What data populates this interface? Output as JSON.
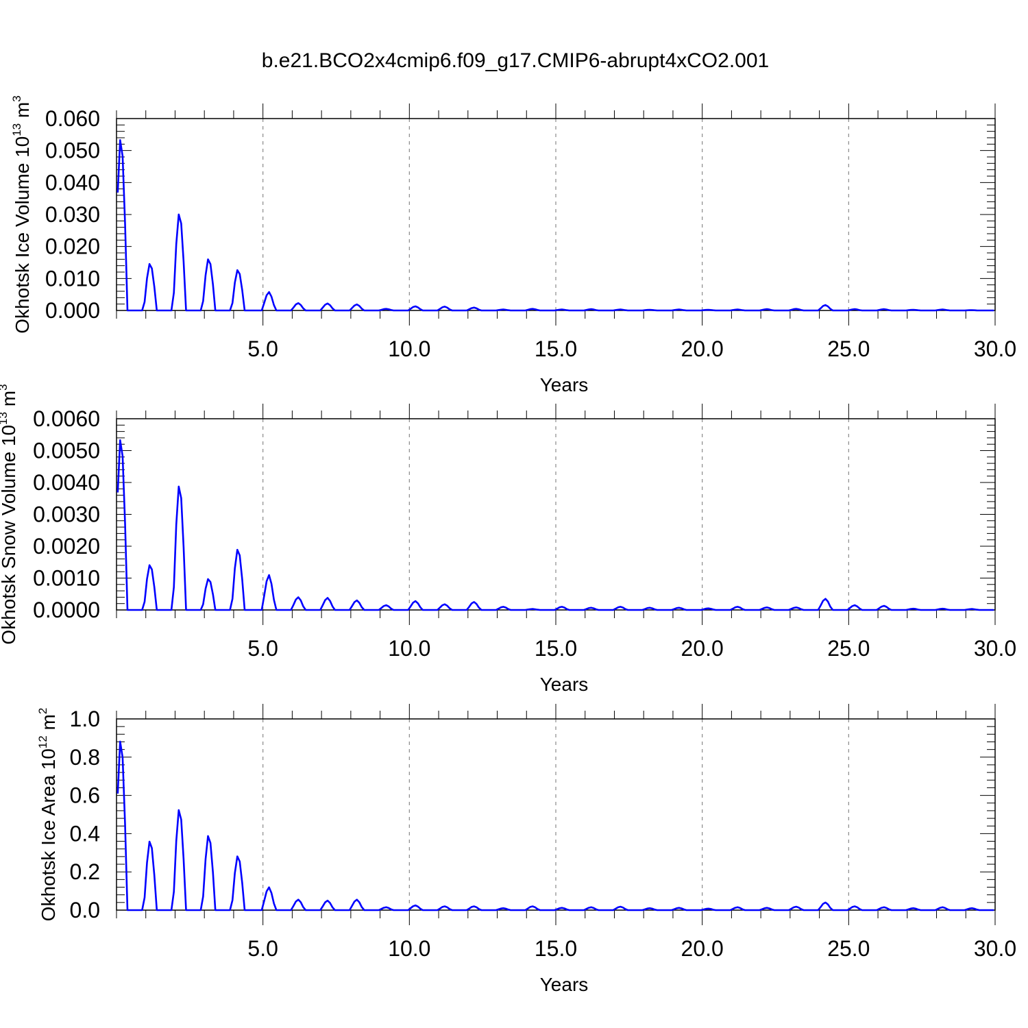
{
  "title": "b.e21.BCO2x4cmip6.f09_g17.CMIP6-abrupt4xCO2.001",
  "line_color": "#0000ff",
  "chart_data": [
    {
      "type": "line",
      "xlabel": "Years",
      "ylabel": "Okhotsk Ice Volume 10",
      "ylabel_exp": "13",
      "ylabel_unit": " m",
      "ylabel_unit_exp": "3",
      "xlim": [
        0,
        30
      ],
      "ylim": [
        0,
        0.06
      ],
      "xticks": [
        "5.0",
        "10.0",
        "15.0",
        "20.0",
        "25.0",
        "30.0"
      ],
      "yticks": [
        "0.000",
        "0.010",
        "0.020",
        "0.030",
        "0.040",
        "0.050",
        "0.060"
      ],
      "grid": "dashed vertical lines at major x ticks",
      "series": [
        {
          "peaks": [
            [
              0.15,
              0.055
            ],
            [
              1.15,
              0.015
            ],
            [
              2.15,
              0.031
            ],
            [
              3.15,
              0.0165
            ],
            [
              4.15,
              0.013
            ],
            [
              5.2,
              0.0058
            ],
            [
              6.2,
              0.0023
            ],
            [
              7.2,
              0.0022
            ],
            [
              8.2,
              0.0019
            ],
            [
              9.2,
              0.0005
            ],
            [
              10.2,
              0.0013
            ],
            [
              11.2,
              0.0012
            ],
            [
              12.2,
              0.0009
            ],
            [
              13.2,
              0.0003
            ],
            [
              14.2,
              0.0005
            ],
            [
              15.2,
              0.0003
            ],
            [
              16.2,
              0.0004
            ],
            [
              17.2,
              0.0003
            ],
            [
              18.2,
              0.0002
            ],
            [
              19.2,
              0.0003
            ],
            [
              20.2,
              0.0002
            ],
            [
              21.2,
              0.0003
            ],
            [
              22.2,
              0.0004
            ],
            [
              23.2,
              0.0005
            ],
            [
              24.2,
              0.0017
            ],
            [
              25.2,
              0.0004
            ],
            [
              26.2,
              0.0004
            ],
            [
              27.2,
              0.0002
            ],
            [
              28.2,
              0.0003
            ],
            [
              29.2,
              0.0001
            ]
          ]
        }
      ]
    },
    {
      "type": "line",
      "xlabel": "Years",
      "ylabel": "Okhotsk Snow Volume 10",
      "ylabel_exp": "13",
      "ylabel_unit": " m",
      "ylabel_unit_exp": "3",
      "xlim": [
        0,
        30
      ],
      "ylim": [
        0,
        0.006
      ],
      "xticks": [
        "5.0",
        "10.0",
        "15.0",
        "20.0",
        "25.0",
        "30.0"
      ],
      "yticks": [
        "0.0000",
        "0.0010",
        "0.0020",
        "0.0030",
        "0.0040",
        "0.0050",
        "0.0060"
      ],
      "grid": "dashed vertical lines at major x ticks",
      "series": [
        {
          "peaks": [
            [
              0.15,
              0.0055
            ],
            [
              1.15,
              0.00145
            ],
            [
              2.15,
              0.004
            ],
            [
              3.15,
              0.001
            ],
            [
              4.15,
              0.00195
            ],
            [
              5.2,
              0.0011
            ],
            [
              6.2,
              0.0004
            ],
            [
              7.2,
              0.00038
            ],
            [
              8.2,
              0.0003
            ],
            [
              9.2,
              0.00015
            ],
            [
              10.2,
              0.00028
            ],
            [
              11.2,
              0.00018
            ],
            [
              12.2,
              0.00025
            ],
            [
              13.2,
              0.0001
            ],
            [
              14.2,
              3e-05
            ],
            [
              15.2,
              0.0001
            ],
            [
              16.2,
              7e-05
            ],
            [
              17.2,
              0.0001
            ],
            [
              18.2,
              7e-05
            ],
            [
              19.2,
              7e-05
            ],
            [
              20.2,
              5e-05
            ],
            [
              21.2,
              0.0001
            ],
            [
              22.2,
              8e-05
            ],
            [
              23.2,
              8e-05
            ],
            [
              24.2,
              0.00035
            ],
            [
              25.2,
              0.00015
            ],
            [
              26.2,
              0.00013
            ],
            [
              27.2,
              4e-05
            ],
            [
              28.2,
              4e-05
            ],
            [
              29.2,
              3e-05
            ]
          ]
        }
      ]
    },
    {
      "type": "line",
      "xlabel": "Years",
      "ylabel": "Okhotsk Ice Area 10",
      "ylabel_exp": "12",
      "ylabel_unit": " m",
      "ylabel_unit_exp": "2",
      "xlim": [
        0,
        30
      ],
      "ylim": [
        0,
        1.0
      ],
      "xticks": [
        "5.0",
        "10.0",
        "15.0",
        "20.0",
        "25.0",
        "30.0"
      ],
      "yticks": [
        "0.0",
        "0.2",
        "0.4",
        "0.6",
        "0.8",
        "1.0"
      ],
      "grid": "dashed vertical lines at major x ticks",
      "series": [
        {
          "peaks": [
            [
              0.15,
              0.91
            ],
            [
              1.15,
              0.37
            ],
            [
              2.15,
              0.54
            ],
            [
              3.15,
              0.4
            ],
            [
              4.15,
              0.29
            ],
            [
              5.2,
              0.12
            ],
            [
              6.2,
              0.055
            ],
            [
              7.2,
              0.05
            ],
            [
              8.2,
              0.055
            ],
            [
              9.2,
              0.015
            ],
            [
              10.2,
              0.025
            ],
            [
              11.2,
              0.02
            ],
            [
              12.2,
              0.02
            ],
            [
              13.2,
              0.01
            ],
            [
              14.2,
              0.02
            ],
            [
              15.2,
              0.012
            ],
            [
              16.2,
              0.015
            ],
            [
              17.2,
              0.018
            ],
            [
              18.2,
              0.01
            ],
            [
              19.2,
              0.012
            ],
            [
              20.2,
              0.008
            ],
            [
              21.2,
              0.015
            ],
            [
              22.2,
              0.012
            ],
            [
              23.2,
              0.018
            ],
            [
              24.2,
              0.04
            ],
            [
              25.2,
              0.02
            ],
            [
              26.2,
              0.015
            ],
            [
              27.2,
              0.01
            ],
            [
              28.2,
              0.015
            ],
            [
              29.2,
              0.01
            ]
          ]
        }
      ]
    }
  ]
}
